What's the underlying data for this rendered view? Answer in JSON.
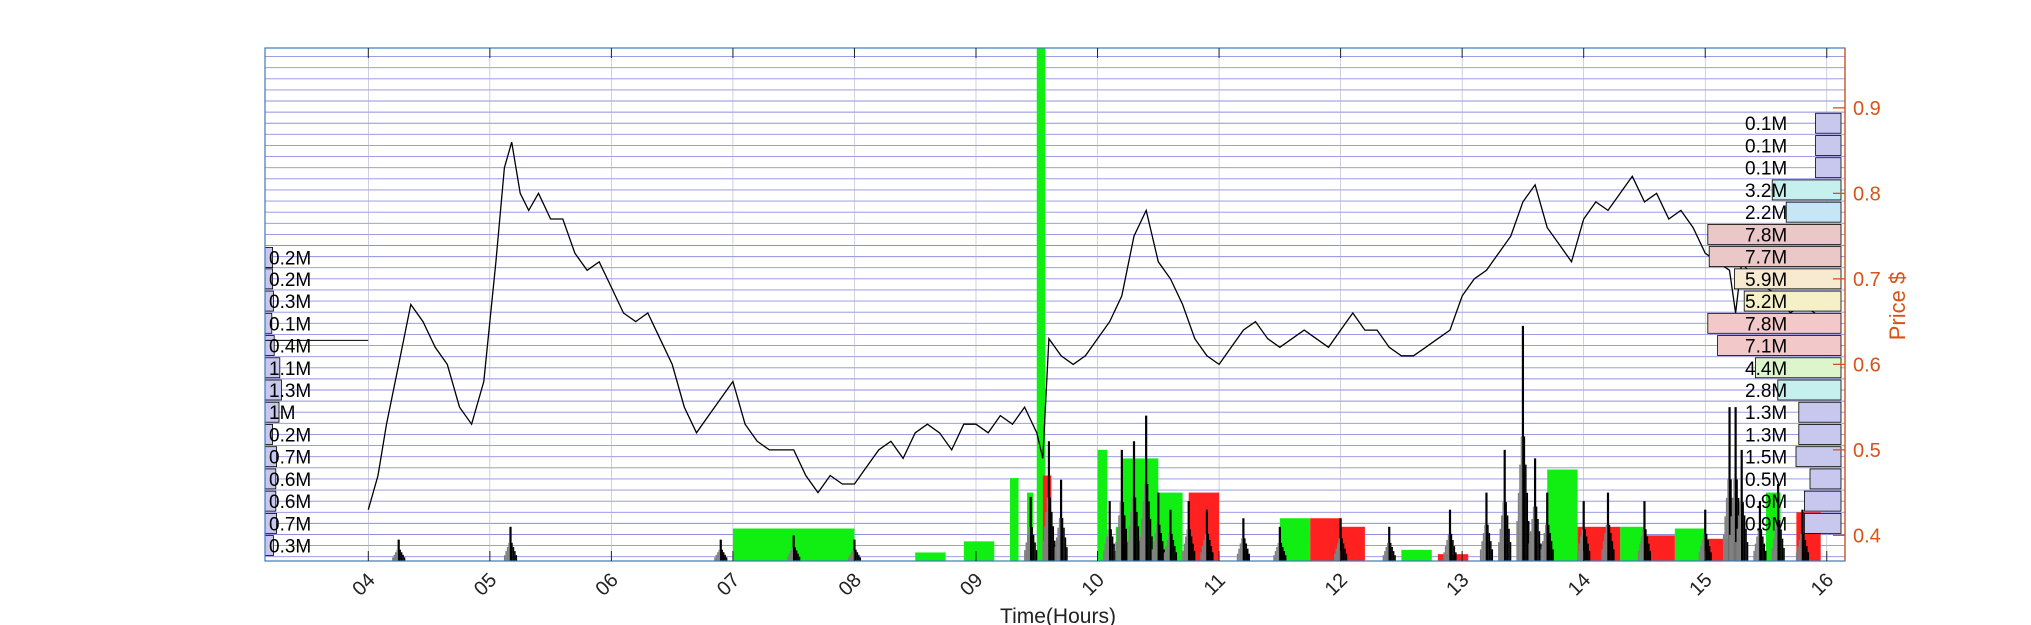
{
  "chart_data": {
    "type": "line",
    "xlabel": "Time(Hours)",
    "ylabel": "Price $",
    "x_ticks": [
      "04",
      "05",
      "06",
      "07",
      "08",
      "09",
      "10",
      "11",
      "12",
      "13",
      "14",
      "15",
      "16"
    ],
    "x_range": [
      3.15,
      16.15
    ],
    "y_ticks": [
      0.4,
      0.5,
      0.6,
      0.7,
      0.8,
      0.9
    ],
    "y_tick_labels": [
      "0.4",
      "0.5",
      "0.6",
      "0.7",
      "0.8",
      "0.9"
    ],
    "ylim": [
      0.37,
      0.97
    ],
    "grid": true,
    "price_series": {
      "name": "",
      "x": [
        4.0,
        4.08,
        4.15,
        4.25,
        4.35,
        4.45,
        4.55,
        4.65,
        4.75,
        4.85,
        4.95,
        5.05,
        5.12,
        5.18,
        5.25,
        5.32,
        5.4,
        5.5,
        5.6,
        5.7,
        5.8,
        5.9,
        6.0,
        6.1,
        6.2,
        6.3,
        6.4,
        6.5,
        6.6,
        6.7,
        6.8,
        6.9,
        7.0,
        7.1,
        7.2,
        7.3,
        7.4,
        7.5,
        7.6,
        7.7,
        7.8,
        7.9,
        8.0,
        8.1,
        8.2,
        8.3,
        8.4,
        8.5,
        8.6,
        8.7,
        8.8,
        8.9,
        9.0,
        9.1,
        9.2,
        9.3,
        9.4,
        9.5,
        9.55,
        9.6,
        9.7,
        9.8,
        9.9,
        10.0,
        10.1,
        10.2,
        10.3,
        10.4,
        10.5,
        10.6,
        10.7,
        10.8,
        10.9,
        11.0,
        11.1,
        11.2,
        11.3,
        11.4,
        11.5,
        11.6,
        11.7,
        11.8,
        11.9,
        12.0,
        12.1,
        12.2,
        12.3,
        12.4,
        12.5,
        12.6,
        12.7,
        12.8,
        12.9,
        13.0,
        13.1,
        13.2,
        13.3,
        13.4,
        13.5,
        13.6,
        13.7,
        13.8,
        13.9,
        14.0,
        14.1,
        14.2,
        14.3,
        14.4,
        14.5,
        14.6,
        14.7,
        14.8,
        14.9,
        15.0,
        15.1,
        15.2,
        15.25,
        15.3,
        15.4,
        15.5,
        15.6,
        15.7,
        15.8,
        15.9,
        16.0
      ],
      "values": [
        0.43,
        0.47,
        0.53,
        0.6,
        0.67,
        0.65,
        0.62,
        0.6,
        0.55,
        0.53,
        0.58,
        0.72,
        0.83,
        0.86,
        0.8,
        0.78,
        0.8,
        0.77,
        0.77,
        0.73,
        0.71,
        0.72,
        0.69,
        0.66,
        0.65,
        0.66,
        0.63,
        0.6,
        0.55,
        0.52,
        0.54,
        0.56,
        0.58,
        0.53,
        0.51,
        0.5,
        0.5,
        0.5,
        0.47,
        0.45,
        0.47,
        0.46,
        0.46,
        0.48,
        0.5,
        0.51,
        0.49,
        0.52,
        0.53,
        0.52,
        0.5,
        0.53,
        0.53,
        0.52,
        0.54,
        0.53,
        0.55,
        0.52,
        0.49,
        0.63,
        0.61,
        0.6,
        0.61,
        0.63,
        0.65,
        0.68,
        0.75,
        0.78,
        0.72,
        0.7,
        0.67,
        0.63,
        0.61,
        0.6,
        0.62,
        0.64,
        0.65,
        0.63,
        0.62,
        0.63,
        0.64,
        0.63,
        0.62,
        0.64,
        0.66,
        0.64,
        0.64,
        0.62,
        0.61,
        0.61,
        0.62,
        0.63,
        0.64,
        0.68,
        0.7,
        0.71,
        0.73,
        0.75,
        0.79,
        0.81,
        0.76,
        0.74,
        0.72,
        0.77,
        0.79,
        0.78,
        0.8,
        0.82,
        0.79,
        0.8,
        0.77,
        0.78,
        0.76,
        0.73,
        0.72,
        0.71,
        0.66,
        0.72,
        0.7,
        0.69,
        0.68,
        0.66,
        0.67,
        0.66,
        0.65
      ]
    },
    "volume_bars": {
      "black_spike_x": [
        4.25,
        5.17,
        6.9,
        7.5,
        8.0,
        9.45,
        9.6,
        9.7,
        10.1,
        10.2,
        10.3,
        10.4,
        10.5,
        10.6,
        10.75,
        10.9,
        11.2,
        11.5,
        12.0,
        12.4,
        12.9,
        13.2,
        13.35,
        13.5,
        13.6,
        13.7,
        14.0,
        14.2,
        14.5,
        15.0,
        15.2,
        15.25,
        15.3,
        15.45,
        15.6,
        15.8
      ],
      "black_spike_values": [
        0.395,
        0.41,
        0.395,
        0.4,
        0.395,
        0.445,
        0.51,
        0.465,
        0.44,
        0.5,
        0.51,
        0.54,
        0.45,
        0.43,
        0.44,
        0.43,
        0.42,
        0.41,
        0.42,
        0.41,
        0.43,
        0.45,
        0.5,
        0.645,
        0.49,
        0.45,
        0.44,
        0.45,
        0.44,
        0.43,
        0.55,
        0.55,
        0.5,
        0.44,
        0.46,
        0.43
      ],
      "green_blocks": [
        {
          "x0": 7.0,
          "x1": 8.0,
          "top": 0.408
        },
        {
          "x0": 8.5,
          "x1": 8.75,
          "top": 0.38
        },
        {
          "x0": 8.9,
          "x1": 9.15,
          "top": 0.393
        },
        {
          "x0": 9.28,
          "x1": 9.35,
          "top": 0.467
        },
        {
          "x0": 9.42,
          "x1": 9.47,
          "top": 0.45
        },
        {
          "x0": 9.5,
          "x1": 9.57,
          "top": 0.97
        },
        {
          "x0": 10.0,
          "x1": 10.08,
          "top": 0.5
        },
        {
          "x0": 10.15,
          "x1": 10.2,
          "top": 0.41
        },
        {
          "x0": 10.2,
          "x1": 10.5,
          "top": 0.49
        },
        {
          "x0": 10.5,
          "x1": 10.7,
          "top": 0.45
        },
        {
          "x0": 11.5,
          "x1": 11.75,
          "top": 0.42
        },
        {
          "x0": 12.5,
          "x1": 12.75,
          "top": 0.383
        },
        {
          "x0": 13.7,
          "x1": 13.95,
          "top": 0.477
        },
        {
          "x0": 14.3,
          "x1": 14.5,
          "top": 0.41
        },
        {
          "x0": 14.75,
          "x1": 15.0,
          "top": 0.408
        },
        {
          "x0": 15.5,
          "x1": 15.62,
          "top": 0.45
        }
      ],
      "red_blocks": [
        {
          "x0": 9.55,
          "x1": 9.62,
          "top": 0.47
        },
        {
          "x0": 10.75,
          "x1": 11.0,
          "top": 0.45
        },
        {
          "x0": 11.75,
          "x1": 12.0,
          "top": 0.42
        },
        {
          "x0": 12.0,
          "x1": 12.2,
          "top": 0.41
        },
        {
          "x0": 12.8,
          "x1": 13.05,
          "top": 0.378
        },
        {
          "x0": 13.95,
          "x1": 14.3,
          "top": 0.41
        },
        {
          "x0": 14.5,
          "x1": 14.75,
          "top": 0.4
        },
        {
          "x0": 15.0,
          "x1": 15.25,
          "top": 0.396
        },
        {
          "x0": 15.75,
          "x1": 15.95,
          "top": 0.427
        }
      ]
    },
    "left_volume_profile": {
      "labels": [
        "0.2M",
        "0.2M",
        "0.3M",
        "0.1M",
        "0.4M",
        "1.1M",
        "1.3M",
        "1M",
        "0.2M",
        "0.7M",
        "0.6M",
        "0.6M",
        "0.7M",
        "0.3M"
      ],
      "values": [
        0.2,
        0.2,
        0.3,
        0.1,
        0.4,
        1.1,
        1.3,
        1.0,
        0.2,
        0.7,
        0.6,
        0.6,
        0.7,
        0.3
      ],
      "row_centers": [
        0.725,
        0.7,
        0.674,
        0.648,
        0.622,
        0.596,
        0.57,
        0.544,
        0.518,
        0.492,
        0.466,
        0.44,
        0.414,
        0.388
      ]
    },
    "right_volume_profile": {
      "labels": [
        "0.1M",
        "0.1M",
        "0.1M",
        "3.2M",
        "2.2M",
        "7.8M",
        "7.7M",
        "5.9M",
        "5.2M",
        "7.8M",
        "7.1M",
        "4.4M",
        "2.8M",
        "1.3M",
        "1.3M",
        "1.5M",
        "0.5M",
        "0.9M",
        "0.9M"
      ],
      "values": [
        0.1,
        0.1,
        0.1,
        3.2,
        2.2,
        7.8,
        7.7,
        5.9,
        5.2,
        7.8,
        7.1,
        4.4,
        2.8,
        1.3,
        1.3,
        1.5,
        0.5,
        0.9,
        0.9
      ],
      "row_centers": [
        0.882,
        0.856,
        0.83,
        0.804,
        0.778,
        0.752,
        0.726,
        0.7,
        0.674,
        0.648,
        0.622,
        0.596,
        0.57,
        0.544,
        0.518,
        0.492,
        0.466,
        0.44,
        0.414
      ],
      "colors": [
        "#c8c8ee",
        "#c8c8ee",
        "#c8c8ee",
        "#c6f0ee",
        "#c6e6f5",
        "#eac8c8",
        "#eac8c8",
        "#f7ead0",
        "#f5f0c8",
        "#f2c8c8",
        "#f2c8c8",
        "#ddf5cc",
        "#c6f0ee",
        "#c8c8ee",
        "#c8c8ee",
        "#c8c8ee",
        "#c8c8ee",
        "#c8c8ee",
        "#c8c8ee"
      ]
    },
    "colors": {
      "price_line": "#000000",
      "grid": "#6a6ad6",
      "axis_right": "#d95319",
      "axis_frame": "#3a7abf",
      "green": "#11ee11",
      "red": "#ff2020",
      "volume_black": "#000000",
      "volume_gray": "#808080"
    }
  }
}
